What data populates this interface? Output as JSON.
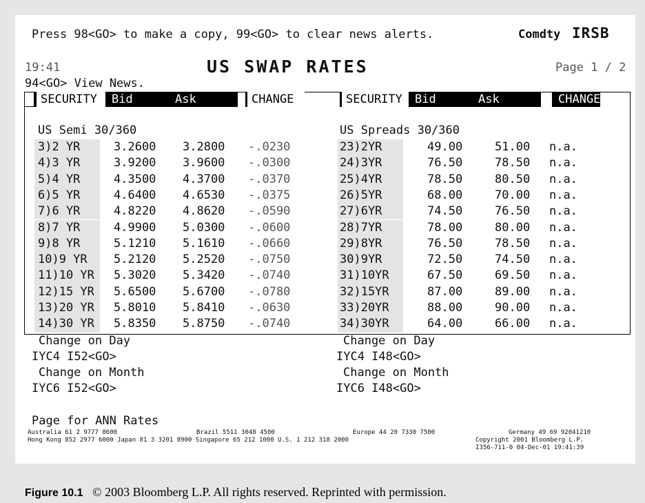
{
  "header": {
    "instruction": "Press 98<GO> to make a copy, 99<GO> to clear news alerts.",
    "market": "Comdty",
    "function": "IRSB",
    "time": "19:41",
    "title": "US SWAP RATES",
    "page": "Page 1 / 2",
    "news": "94<GO> View News."
  },
  "columns": [
    "SECURITY",
    "Bid",
    "Ask",
    "CHANGE"
  ],
  "left": {
    "title": "US Semi 30/360",
    "rows": [
      [
        "3)2 YR",
        "3.2600",
        "3.2800",
        "-.0230"
      ],
      [
        "4)3 YR",
        "3.9200",
        "3.9600",
        "-.0300"
      ],
      [
        "5)4 YR",
        "4.3500",
        "4.3700",
        "-.0370"
      ],
      [
        "6)5 YR",
        "4.6400",
        "4.6530",
        "-.0375"
      ],
      [
        "7)6 YR",
        "4.8220",
        "4.8620",
        "-.0590"
      ],
      [
        "8)7 YR",
        "4.9900",
        "5.0300",
        "-.0600"
      ],
      [
        "9)8 YR",
        "5.1210",
        "5.1610",
        "-.0660"
      ],
      [
        "10)9 YR",
        "5.2120",
        "5.2520",
        "-.0750"
      ],
      [
        "11)10 YR",
        "5.3020",
        "5.3420",
        "-.0740"
      ],
      [
        "12)15 YR",
        "5.6500",
        "5.6700",
        "-.0780"
      ],
      [
        "13)20 YR",
        "5.8010",
        "5.8410",
        "-.0630"
      ],
      [
        "14)30 YR",
        "5.8350",
        "5.8750",
        "-.0740"
      ]
    ],
    "links": [
      "Change on Day",
      "IYC4 I52<GO>",
      "Change on Month",
      "IYC6 I52<GO>"
    ]
  },
  "right": {
    "title": "US Spreads 30/360",
    "rows": [
      [
        "23)2YR",
        "49.00",
        "51.00",
        "n.a."
      ],
      [
        "24)3YR",
        "76.50",
        "78.50",
        "n.a."
      ],
      [
        "25)4YR",
        "78.50",
        "80.50",
        "n.a."
      ],
      [
        "26)5YR",
        "68.00",
        "70.00",
        "n.a."
      ],
      [
        "27)6YR",
        "74.50",
        "76.50",
        "n.a."
      ],
      [
        "28)7YR",
        "78.00",
        "80.00",
        "n.a."
      ],
      [
        "29)8YR",
        "76.50",
        "78.50",
        "n.a."
      ],
      [
        "30)9YR",
        "72.50",
        "74.50",
        "n.a."
      ],
      [
        "31)10YR",
        "67.50",
        "69.50",
        "n.a."
      ],
      [
        "32)15YR",
        "87.00",
        "89.00",
        "n.a."
      ],
      [
        "33)20YR",
        "88.00",
        "90.00",
        "n.a."
      ],
      [
        "34)30YR",
        "64.00",
        "66.00",
        "n.a."
      ]
    ],
    "links": [
      "Change on Day",
      "IYC4 I48<GO>",
      "Change on Month",
      "IYC6 I48<GO>"
    ]
  },
  "footer": {
    "note": "Page for ANN Rates",
    "contacts": [
      "Australia 61 2 9777 8600",
      "Brazil 5511 3048 4500",
      "Europe 44 20 7330 7500",
      "Germany 49 69 92041210",
      "Hong Kong 852 2977 6000 Japan 81 3 3201 8900 Singapore 65 212 1000 U.S. 1 212 318 2000",
      "Copyright 2001 Bloomberg L.P.",
      "I356-711-0 04-Dec-01 19:41:39"
    ]
  },
  "caption": {
    "label": "Figure 10.1",
    "text": "© 2003 Bloomberg L.P. All rights reserved. Reprinted with permission."
  }
}
